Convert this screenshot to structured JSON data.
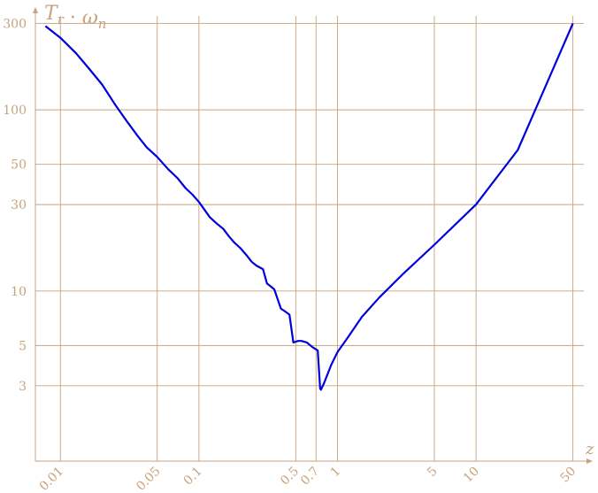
{
  "chart_data": {
    "type": "line",
    "x_scale": "log",
    "y_scale": "log",
    "xlabel": "z",
    "ylabel": "T_r · ω_n",
    "xlim": [
      0.0066,
      60
    ],
    "ylim": [
      1.15,
      330
    ],
    "x_ticks": [
      {
        "value": 0.01,
        "label": "0.01"
      },
      {
        "value": 0.05,
        "label": "0.05"
      },
      {
        "value": 0.1,
        "label": "0.1"
      },
      {
        "value": 0.5,
        "label": "0.5"
      },
      {
        "value": 0.7,
        "label": "0.7"
      },
      {
        "value": 1,
        "label": "1"
      },
      {
        "value": 5,
        "label": "5"
      },
      {
        "value": 10,
        "label": "10"
      },
      {
        "value": 50,
        "label": "50"
      }
    ],
    "y_ticks": [
      {
        "value": 3,
        "label": "3"
      },
      {
        "value": 5,
        "label": "5"
      },
      {
        "value": 10,
        "label": "10"
      },
      {
        "value": 30,
        "label": "30"
      },
      {
        "value": 50,
        "label": "50"
      },
      {
        "value": 100,
        "label": "100"
      },
      {
        "value": 300,
        "label": "300"
      }
    ],
    "grid": true,
    "series_color": "#0000dd",
    "grid_color": "#c8a27c",
    "series": [
      {
        "x": [
          0.0078,
          0.01,
          0.013,
          0.016,
          0.02,
          0.025,
          0.03,
          0.036,
          0.042,
          0.05,
          0.06,
          0.07,
          0.08,
          0.09,
          0.1,
          0.11,
          0.12,
          0.135,
          0.15,
          0.165,
          0.18,
          0.2,
          0.22,
          0.24,
          0.26,
          0.29,
          0.31,
          0.33,
          0.35,
          0.39,
          0.42,
          0.45,
          0.48,
          0.52,
          0.55,
          0.6,
          0.66,
          0.72,
          0.75,
          0.76,
          0.8,
          0.9,
          1,
          1.2,
          1.5,
          2,
          3,
          5,
          10,
          20,
          50
        ],
        "y": [
          290,
          250,
          205,
          170,
          138,
          106,
          87,
          72,
          62,
          55,
          47,
          42,
          37,
          34,
          31,
          28,
          25.5,
          23.5,
          22,
          20,
          18.5,
          17.2,
          15.8,
          14.5,
          13.8,
          13.2,
          11.0,
          10.6,
          10.2,
          8.0,
          7.7,
          7.4,
          5.2,
          5.3,
          5.3,
          5.2,
          4.9,
          4.7,
          2.9,
          2.85,
          3.1,
          3.9,
          4.6,
          5.6,
          7.2,
          9.2,
          12.5,
          18,
          30,
          60,
          300
        ]
      }
    ]
  }
}
